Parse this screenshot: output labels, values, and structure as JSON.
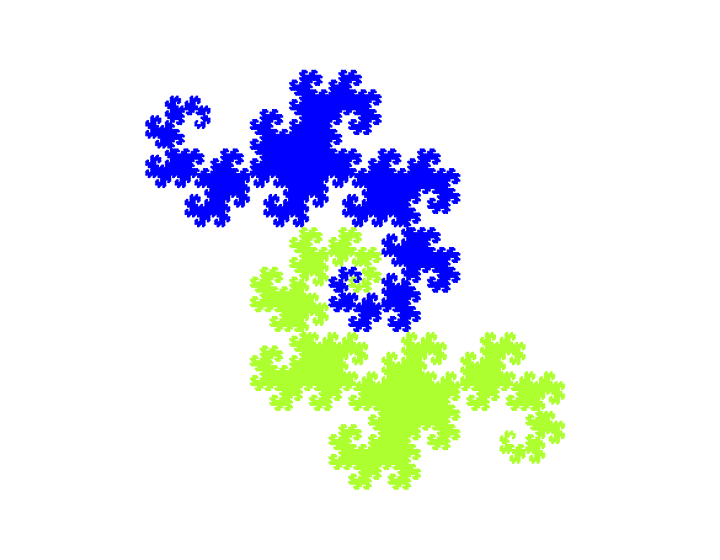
{
  "canvas": {
    "background_color": "#ffffff"
  },
  "figure": {
    "kind": "Heighway dragon curve (two interlocking copies)",
    "iterations": 15,
    "curves": [
      {
        "name": "dragon-curve-green",
        "color": "#adff2f"
      },
      {
        "name": "dragon-curve-blue",
        "color": "#0000ff"
      }
    ]
  }
}
